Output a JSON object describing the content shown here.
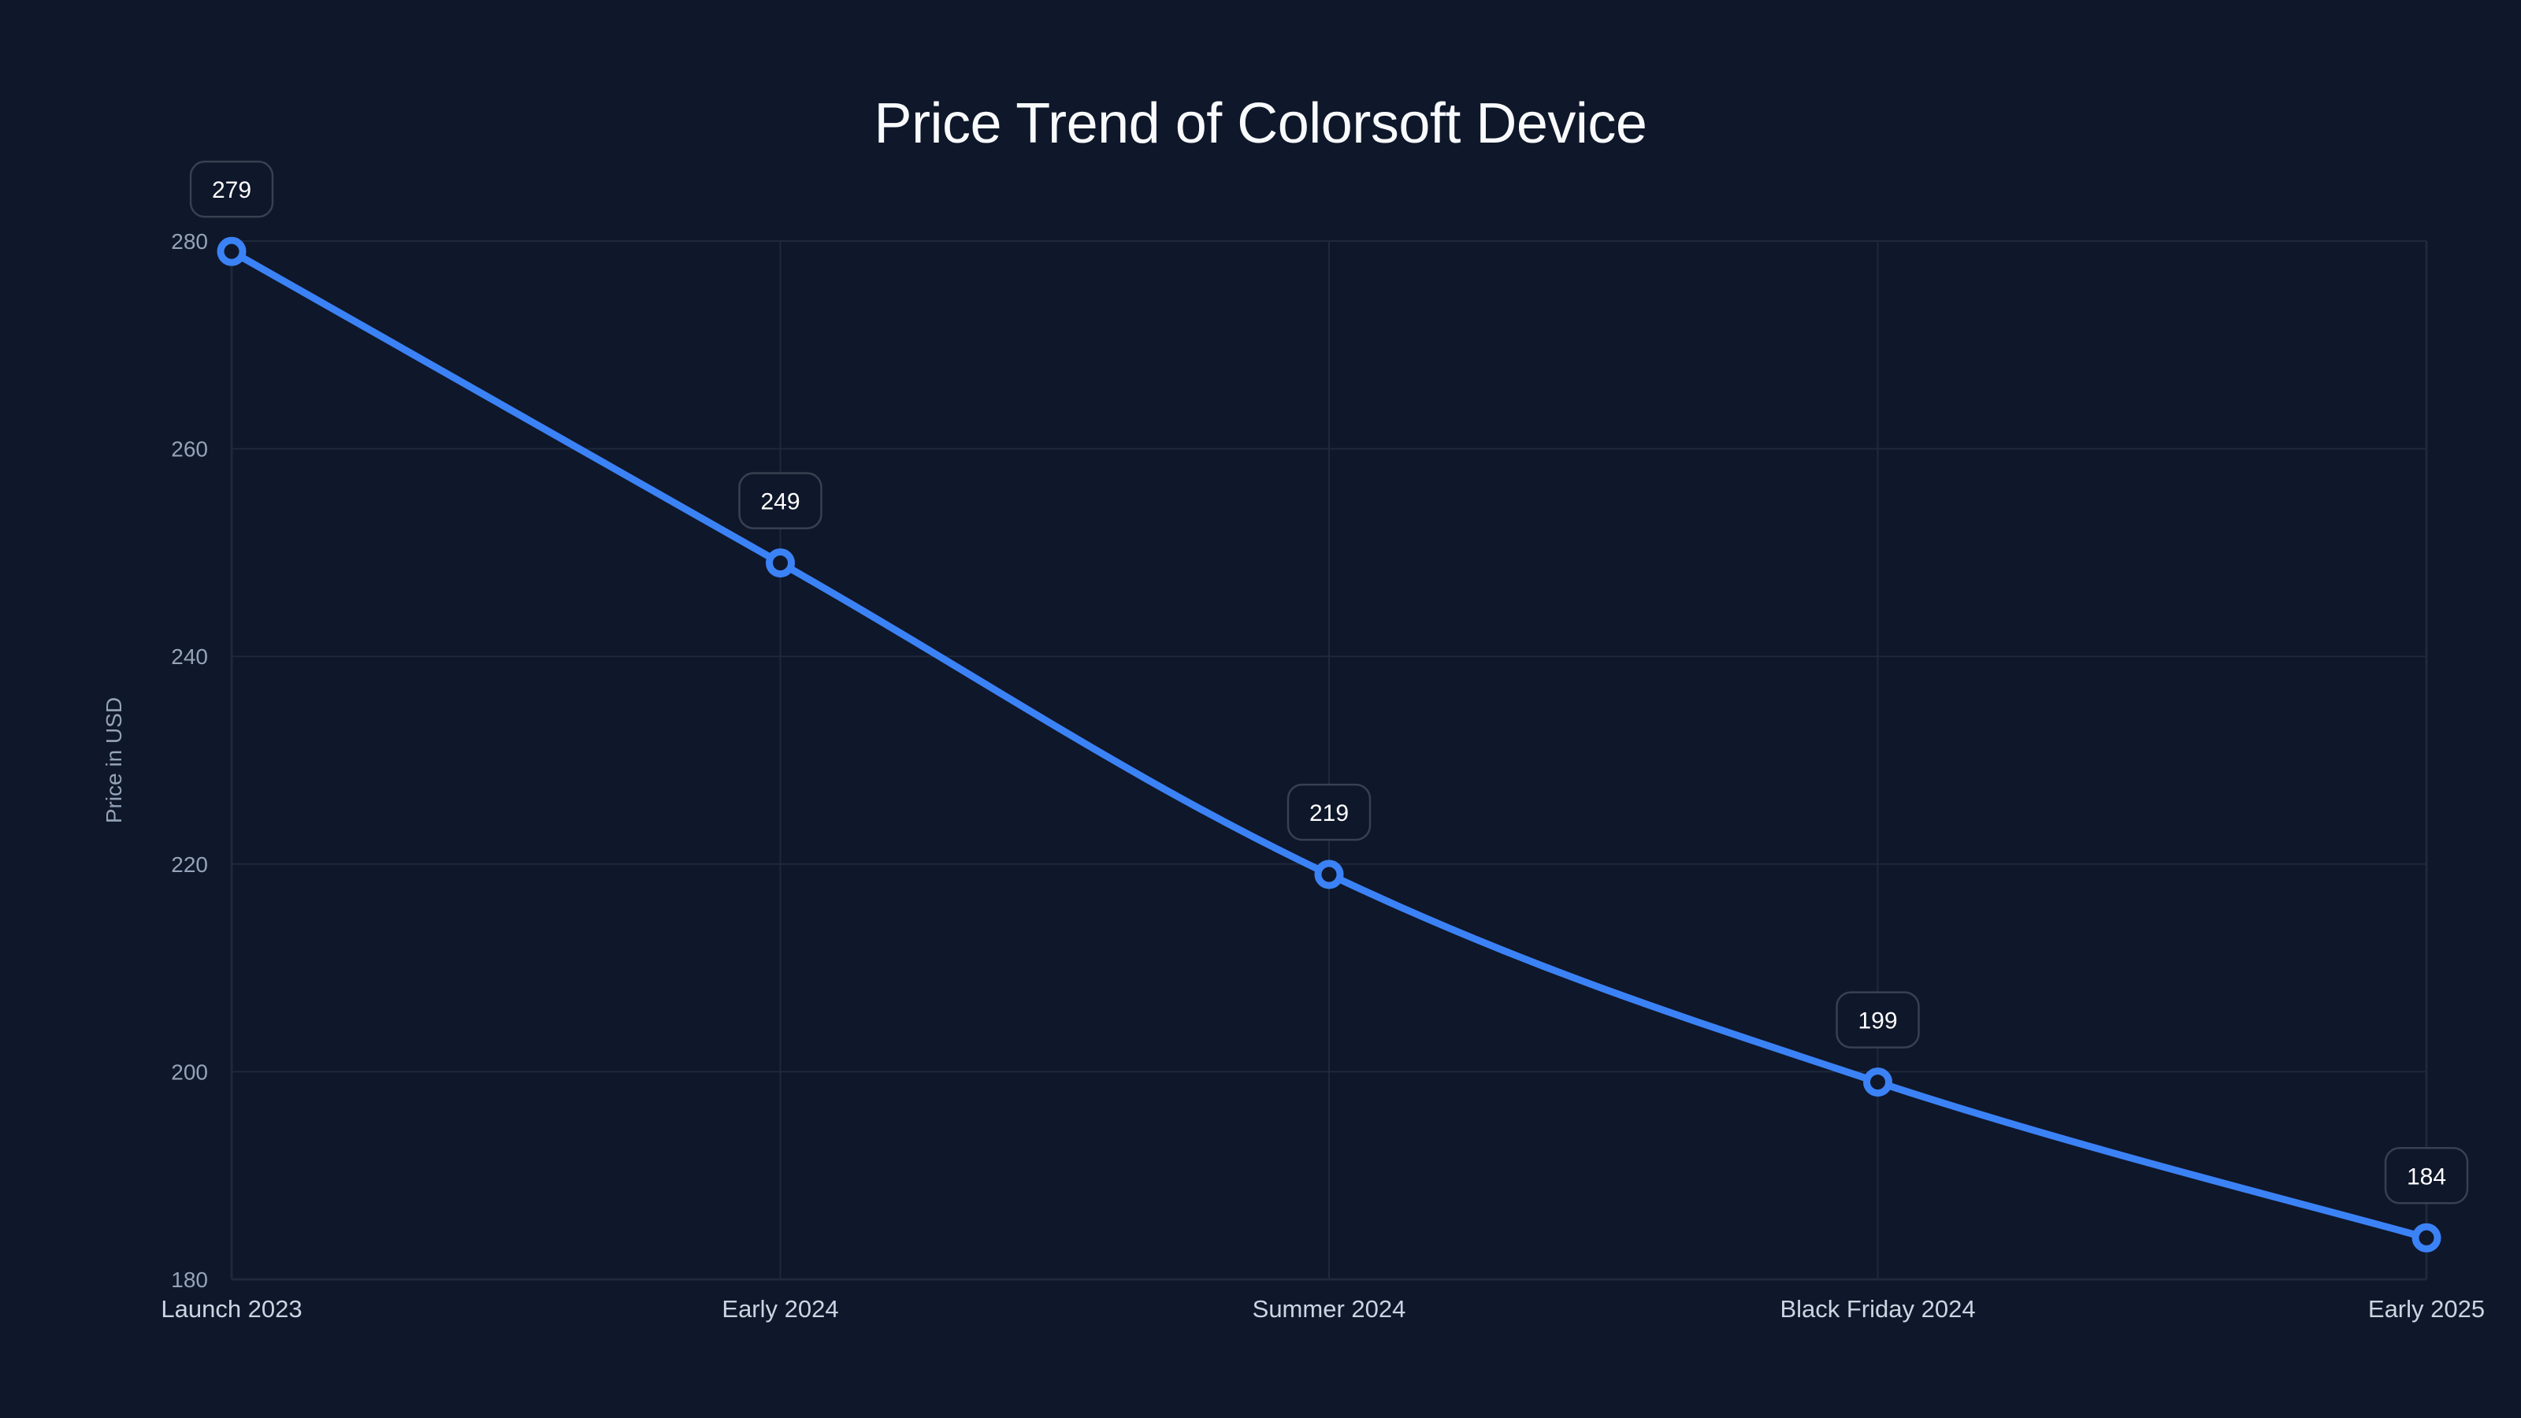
{
  "chart_data": {
    "type": "line",
    "title": "Price Trend of Colorsoft Device",
    "xlabel": "",
    "ylabel": "Price in USD",
    "categories": [
      "Launch 2023",
      "Early 2024",
      "Summer 2024",
      "Black Friday 2024",
      "Early 2025"
    ],
    "series": [
      {
        "name": "Price",
        "color": "#3b82f6",
        "values": [
          279,
          249,
          219,
          199,
          184
        ]
      }
    ],
    "data_labels": [
      "279",
      "249",
      "219",
      "199",
      "184"
    ],
    "yticks": [
      180,
      200,
      220,
      240,
      260,
      280
    ],
    "ylim": [
      180,
      280
    ],
    "grid": true,
    "legend": "none",
    "line_shape": "smooth"
  },
  "colors": {
    "background": "#0f172a",
    "line": "#3b82f6",
    "grid": "#1e293b",
    "tick_text": "#94a3b8",
    "category_text": "#cbd5e1",
    "title_text": "#f8fafc",
    "label_border": "#374151"
  }
}
